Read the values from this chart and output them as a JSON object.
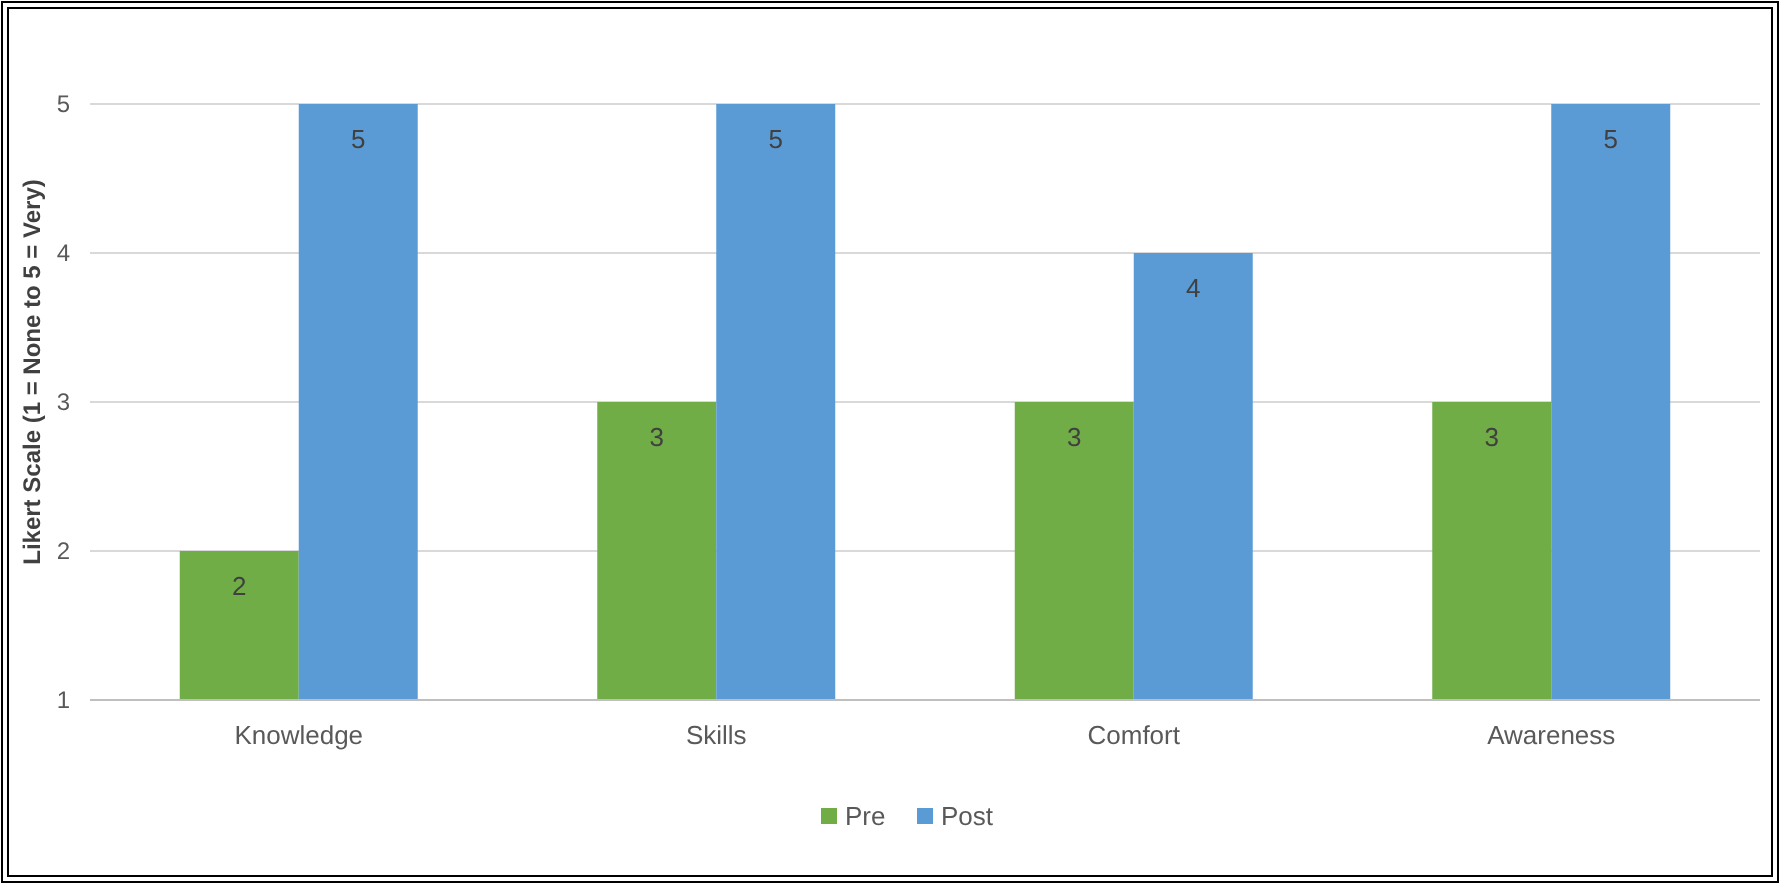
{
  "chart_data": {
    "type": "bar",
    "ylabel": "Likert Scale (1 = None to 5 = Very)",
    "categories": [
      "Knowledge",
      "Skills",
      "Comfort",
      "Awareness"
    ],
    "series": [
      {
        "name": "Pre",
        "color": "#70ad47",
        "values": [
          2,
          3,
          3,
          3
        ]
      },
      {
        "name": "Post",
        "color": "#5b9bd5",
        "values": [
          5,
          5,
          4,
          5
        ]
      }
    ],
    "ylim": [
      1,
      5
    ],
    "yticks": [
      1,
      2,
      3,
      4,
      5
    ],
    "grid": "y",
    "legend": "bottom",
    "data_labels": true
  }
}
